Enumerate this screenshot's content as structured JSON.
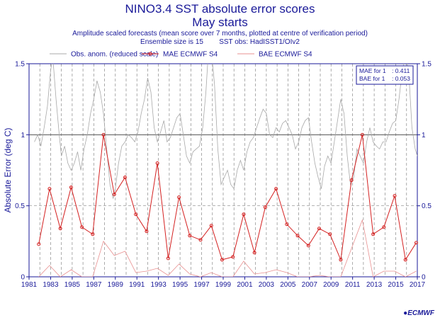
{
  "chart_data": {
    "type": "line",
    "title": "NINO3.4 SST absolute error scores",
    "subtitle": "May starts",
    "notes": [
      "Amplitude scaled forecasts (mean score over 7 months, plotted at centre of verification period)",
      "Ensemble size is 15        SST obs: HadISST1/OIv2"
    ],
    "ylabel": "Absolute Error (deg C)",
    "xlim": [
      1981,
      2017
    ],
    "ylim": [
      0,
      1.5
    ],
    "x_ticks": [
      1981,
      1983,
      1985,
      1987,
      1989,
      1991,
      1993,
      1995,
      1997,
      1999,
      2001,
      2003,
      2005,
      2007,
      2009,
      2011,
      2013,
      2015,
      2017
    ],
    "y_ticks": [
      0,
      0.5,
      1,
      1.5
    ],
    "y_tick_labels": [
      "0",
      "0.5",
      "1",
      "1.5"
    ],
    "grid": true,
    "legend_position": "top",
    "series": [
      {
        "name": "Obs. anom. (reduced scale)",
        "color": "#a8a8a8",
        "style": "thin-line",
        "points": [
          [
            1981.5,
            0.95
          ],
          [
            1981.8,
            1.0
          ],
          [
            1982.1,
            0.92
          ],
          [
            1982.4,
            1.05
          ],
          [
            1982.7,
            1.2
          ],
          [
            1983.0,
            1.45
          ],
          [
            1983.2,
            1.55
          ],
          [
            1983.5,
            1.25
          ],
          [
            1983.8,
            1.0
          ],
          [
            1984.0,
            0.85
          ],
          [
            1984.3,
            0.92
          ],
          [
            1984.6,
            0.8
          ],
          [
            1984.9,
            0.75
          ],
          [
            1985.2,
            0.8
          ],
          [
            1985.5,
            0.88
          ],
          [
            1985.8,
            0.75
          ],
          [
            1986.1,
            0.9
          ],
          [
            1986.4,
            1.0
          ],
          [
            1986.7,
            1.15
          ],
          [
            1987.0,
            1.25
          ],
          [
            1987.3,
            1.38
          ],
          [
            1987.6,
            1.3
          ],
          [
            1987.9,
            1.15
          ],
          [
            1988.2,
            0.9
          ],
          [
            1988.5,
            0.65
          ],
          [
            1988.8,
            0.55
          ],
          [
            1989.0,
            0.62
          ],
          [
            1989.3,
            0.8
          ],
          [
            1989.6,
            0.92
          ],
          [
            1989.9,
            0.95
          ],
          [
            1990.2,
            1.0
          ],
          [
            1990.5,
            0.98
          ],
          [
            1990.8,
            0.95
          ],
          [
            1991.1,
            1.02
          ],
          [
            1991.4,
            1.15
          ],
          [
            1991.7,
            1.25
          ],
          [
            1992.0,
            1.4
          ],
          [
            1992.3,
            1.3
          ],
          [
            1992.6,
            1.05
          ],
          [
            1992.9,
            0.95
          ],
          [
            1993.2,
            1.02
          ],
          [
            1993.5,
            1.1
          ],
          [
            1993.8,
            0.95
          ],
          [
            1994.1,
            0.98
          ],
          [
            1994.4,
            1.05
          ],
          [
            1994.7,
            1.12
          ],
          [
            1995.0,
            1.15
          ],
          [
            1995.3,
            1.0
          ],
          [
            1995.6,
            0.85
          ],
          [
            1995.9,
            0.8
          ],
          [
            1996.2,
            0.88
          ],
          [
            1996.5,
            0.9
          ],
          [
            1996.8,
            0.92
          ],
          [
            1997.1,
            1.05
          ],
          [
            1997.4,
            1.3
          ],
          [
            1997.6,
            1.55
          ],
          [
            1997.9,
            1.6
          ],
          [
            1998.2,
            1.35
          ],
          [
            1998.5,
            0.9
          ],
          [
            1998.8,
            0.65
          ],
          [
            1999.1,
            0.7
          ],
          [
            1999.4,
            0.75
          ],
          [
            1999.7,
            0.65
          ],
          [
            2000.0,
            0.62
          ],
          [
            2000.3,
            0.75
          ],
          [
            2000.6,
            0.82
          ],
          [
            2000.9,
            0.75
          ],
          [
            2001.2,
            0.88
          ],
          [
            2001.5,
            0.95
          ],
          [
            2001.8,
            0.98
          ],
          [
            2002.1,
            1.05
          ],
          [
            2002.4,
            1.12
          ],
          [
            2002.7,
            1.18
          ],
          [
            2003.0,
            1.15
          ],
          [
            2003.3,
            1.0
          ],
          [
            2003.6,
            0.98
          ],
          [
            2003.9,
            1.05
          ],
          [
            2004.2,
            1.02
          ],
          [
            2004.5,
            1.08
          ],
          [
            2004.8,
            1.1
          ],
          [
            2005.1,
            1.05
          ],
          [
            2005.4,
            1.0
          ],
          [
            2005.7,
            0.9
          ],
          [
            2006.0,
            0.95
          ],
          [
            2006.3,
            1.05
          ],
          [
            2006.6,
            1.1
          ],
          [
            2006.9,
            1.12
          ],
          [
            2007.2,
            0.95
          ],
          [
            2007.5,
            0.8
          ],
          [
            2007.8,
            0.7
          ],
          [
            2008.1,
            0.62
          ],
          [
            2008.4,
            0.78
          ],
          [
            2008.7,
            0.85
          ],
          [
            2009.0,
            0.8
          ],
          [
            2009.3,
            0.95
          ],
          [
            2009.6,
            1.1
          ],
          [
            2009.9,
            1.25
          ],
          [
            2010.2,
            1.15
          ],
          [
            2010.5,
            0.85
          ],
          [
            2010.8,
            0.65
          ],
          [
            2011.1,
            0.7
          ],
          [
            2011.4,
            0.9
          ],
          [
            2011.7,
            0.85
          ],
          [
            2012.0,
            0.8
          ],
          [
            2012.3,
            0.95
          ],
          [
            2012.6,
            1.05
          ],
          [
            2012.9,
            0.95
          ],
          [
            2013.2,
            0.92
          ],
          [
            2013.5,
            0.9
          ],
          [
            2013.8,
            0.95
          ],
          [
            2014.1,
            0.95
          ],
          [
            2014.4,
            1.02
          ],
          [
            2014.7,
            1.08
          ],
          [
            2015.0,
            1.1
          ],
          [
            2015.3,
            1.25
          ],
          [
            2015.6,
            1.45
          ],
          [
            2015.9,
            1.55
          ],
          [
            2016.2,
            1.45
          ],
          [
            2016.5,
            1.05
          ],
          [
            2016.8,
            0.9
          ],
          [
            2017.0,
            0.85
          ]
        ]
      },
      {
        "name": "MAE ECMWF S4",
        "color": "#d42020",
        "style": "line-markers",
        "points": [
          [
            1981.9,
            0.23
          ],
          [
            1982.9,
            0.62
          ],
          [
            1983.9,
            0.34
          ],
          [
            1984.9,
            0.63
          ],
          [
            1985.9,
            0.35
          ],
          [
            1986.9,
            0.3
          ],
          [
            1987.9,
            1.0
          ],
          [
            1988.9,
            0.58
          ],
          [
            1989.9,
            0.7
          ],
          [
            1990.9,
            0.44
          ],
          [
            1991.9,
            0.32
          ],
          [
            1992.9,
            0.8
          ],
          [
            1993.9,
            0.13
          ],
          [
            1994.9,
            0.56
          ],
          [
            1995.9,
            0.29
          ],
          [
            1996.9,
            0.26
          ],
          [
            1997.9,
            0.36
          ],
          [
            1998.9,
            0.12
          ],
          [
            1999.9,
            0.14
          ],
          [
            2000.9,
            0.44
          ],
          [
            2001.9,
            0.17
          ],
          [
            2002.9,
            0.49
          ],
          [
            2003.9,
            0.62
          ],
          [
            2004.9,
            0.37
          ],
          [
            2005.9,
            0.29
          ],
          [
            2006.9,
            0.22
          ],
          [
            2007.9,
            0.34
          ],
          [
            2008.9,
            0.3
          ],
          [
            2009.9,
            0.12
          ],
          [
            2010.9,
            0.68
          ],
          [
            2011.9,
            1.0
          ],
          [
            2012.9,
            0.3
          ],
          [
            2013.9,
            0.35
          ],
          [
            2014.9,
            0.57
          ],
          [
            2015.9,
            0.12
          ],
          [
            2016.9,
            0.24
          ]
        ]
      },
      {
        "name": "BAE ECMWF S4",
        "color": "#e89090",
        "style": "thin-line",
        "points": [
          [
            1981.9,
            0.0
          ],
          [
            1982.9,
            0.08
          ],
          [
            1983.9,
            0.0
          ],
          [
            1984.9,
            0.05
          ],
          [
            1985.9,
            0.0
          ],
          [
            1986.9,
            0.0
          ],
          [
            1987.9,
            0.25
          ],
          [
            1988.9,
            0.15
          ],
          [
            1989.9,
            0.18
          ],
          [
            1990.9,
            0.03
          ],
          [
            1991.9,
            0.04
          ],
          [
            1992.9,
            0.06
          ],
          [
            1993.9,
            0.01
          ],
          [
            1994.9,
            0.09
          ],
          [
            1995.9,
            0.02
          ],
          [
            1996.9,
            0.0
          ],
          [
            1997.9,
            0.03
          ],
          [
            1998.9,
            0.0
          ],
          [
            1999.9,
            0.0
          ],
          [
            2000.9,
            0.11
          ],
          [
            2001.9,
            0.02
          ],
          [
            2002.9,
            0.03
          ],
          [
            2003.9,
            0.05
          ],
          [
            2004.9,
            0.03
          ],
          [
            2005.9,
            0.0
          ],
          [
            2006.9,
            0.0
          ],
          [
            2007.9,
            0.01
          ],
          [
            2008.9,
            0.0
          ],
          [
            2009.9,
            0.0
          ],
          [
            2010.9,
            0.2
          ],
          [
            2011.9,
            0.4
          ],
          [
            2012.9,
            0.0
          ],
          [
            2013.9,
            0.04
          ],
          [
            2014.9,
            0.04
          ],
          [
            2015.9,
            0.0
          ],
          [
            2016.9,
            0.04
          ]
        ]
      }
    ],
    "stats_box": [
      {
        "label": "MAE for 1",
        "value": ": 0.411"
      },
      {
        "label": "BAE for 1",
        "value": ": 0.053"
      }
    ],
    "reference_line": 1.0
  },
  "footer": {
    "logo_text": "ECMWF"
  }
}
